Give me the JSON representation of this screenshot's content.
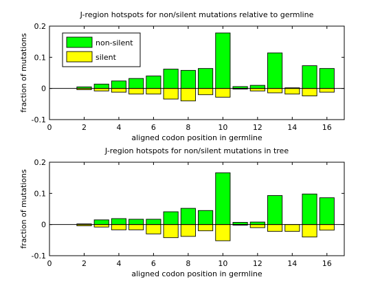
{
  "chart_data": [
    {
      "type": "bar",
      "title": "J-region hotspots for non/silent mutations relative to germline",
      "xlabel": "aligned codon position in germline",
      "ylabel": "fraction of mutations",
      "xlim": [
        0,
        17
      ],
      "ylim": [
        -0.1,
        0.2
      ],
      "xticks": [
        "0",
        "2",
        "4",
        "6",
        "8",
        "10",
        "12",
        "14",
        "16"
      ],
      "yticks": [
        "-0.1",
        "0",
        "0.1",
        "0.2"
      ],
      "grid": false,
      "legend": {
        "position": "top-left",
        "entries": [
          "non-silent",
          "silent"
        ]
      },
      "x": [
        2,
        3,
        4,
        5,
        6,
        7,
        8,
        9,
        10,
        11,
        12,
        13,
        14,
        15,
        16
      ],
      "series": [
        {
          "name": "non-silent",
          "color": "#00ff00",
          "values": [
            0.005,
            0.014,
            0.024,
            0.032,
            0.04,
            0.062,
            0.058,
            0.064,
            0.178,
            0.006,
            0.01,
            0.114,
            0.002,
            0.073,
            0.064
          ]
        },
        {
          "name": "silent",
          "color": "#ffff00",
          "values": [
            -0.004,
            -0.008,
            -0.012,
            -0.018,
            -0.018,
            -0.034,
            -0.04,
            -0.02,
            -0.028,
            -0.002,
            -0.008,
            -0.014,
            -0.018,
            -0.024,
            -0.012
          ]
        }
      ]
    },
    {
      "type": "bar",
      "title": "J-region hotspots for non/silent mutations in tree",
      "xlabel": "aligned codon position in germline",
      "ylabel": "fraction of mutations",
      "xlim": [
        0,
        17
      ],
      "ylim": [
        -0.1,
        0.2
      ],
      "xticks": [
        "0",
        "2",
        "4",
        "6",
        "8",
        "10",
        "12",
        "14",
        "16"
      ],
      "yticks": [
        "-0.1",
        "0",
        "0.1",
        "0.2"
      ],
      "grid": false,
      "x": [
        2,
        3,
        4,
        5,
        6,
        7,
        8,
        9,
        10,
        11,
        12,
        13,
        14,
        15,
        16
      ],
      "series": [
        {
          "name": "non-silent",
          "color": "#00ff00",
          "values": [
            0.002,
            0.015,
            0.019,
            0.017,
            0.017,
            0.041,
            0.052,
            0.045,
            0.166,
            0.007,
            0.008,
            0.093,
            0.0,
            0.098,
            0.086
          ]
        },
        {
          "name": "silent",
          "color": "#ffff00",
          "values": [
            -0.004,
            -0.008,
            -0.017,
            -0.017,
            -0.03,
            -0.042,
            -0.038,
            -0.02,
            -0.052,
            -0.002,
            -0.01,
            -0.022,
            -0.022,
            -0.04,
            -0.018
          ]
        }
      ]
    }
  ]
}
